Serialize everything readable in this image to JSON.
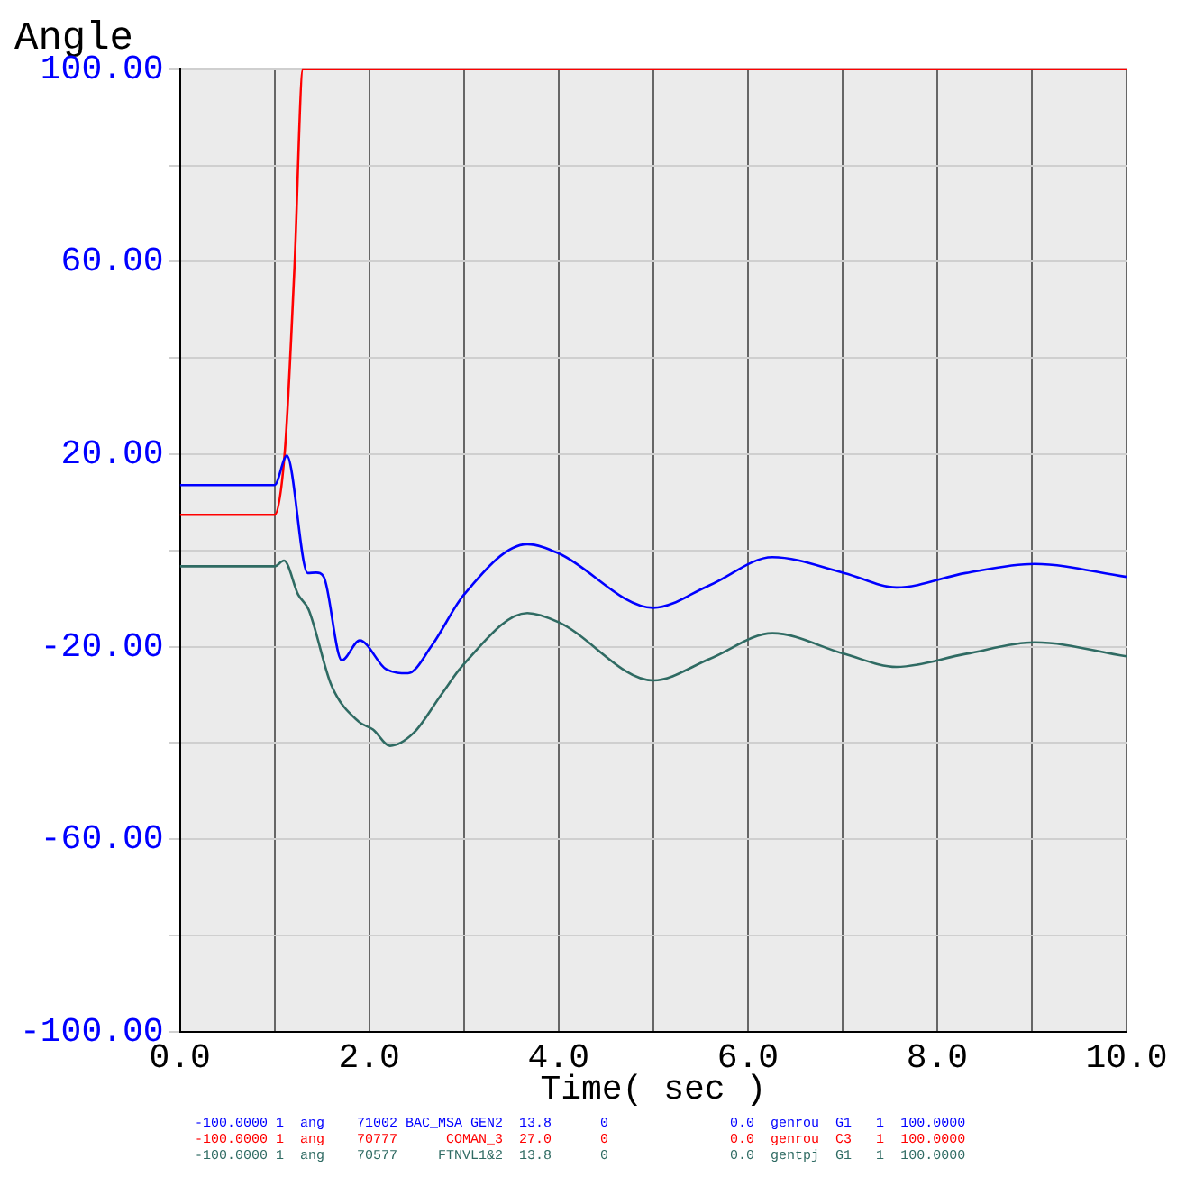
{
  "chart_data": {
    "type": "line",
    "title": "Angle",
    "xlabel": "Time( sec )",
    "xlim": [
      0,
      10
    ],
    "xticks": [
      {
        "value": 0,
        "label": "0.0"
      },
      {
        "value": 1,
        "label": null
      },
      {
        "value": 2,
        "label": "2.0"
      },
      {
        "value": 3,
        "label": null
      },
      {
        "value": 4,
        "label": "4.0"
      },
      {
        "value": 5,
        "label": null
      },
      {
        "value": 6,
        "label": "6.0"
      },
      {
        "value": 7,
        "label": null
      },
      {
        "value": 8,
        "label": "8.0"
      },
      {
        "value": 9,
        "label": null
      },
      {
        "value": 10,
        "label": "10.0"
      }
    ],
    "ylim": [
      -100,
      100
    ],
    "yticks": [
      {
        "value": -100,
        "label": "-100.00"
      },
      {
        "value": -80,
        "label": null
      },
      {
        "value": -60,
        "label": "-60.00"
      },
      {
        "value": -40,
        "label": null
      },
      {
        "value": -20,
        "label": "-20.00"
      },
      {
        "value": 0,
        "label": null
      },
      {
        "value": 20,
        "label": "20.00"
      },
      {
        "value": 40,
        "label": null
      },
      {
        "value": 60,
        "label": "60.00"
      },
      {
        "value": 80,
        "label": null
      },
      {
        "value": 100,
        "label": "100.00"
      }
    ],
    "grid": true,
    "legend": "bottom",
    "marker": "none",
    "line_style": "solid",
    "series": [
      {
        "name": "-100.0000 1  ang    71002 BAC_MSA GEN2  13.8      0               0.0  genrou  G1   1  100.0000",
        "color": "#0000ff",
        "x": [
          0,
          1.0,
          1.13,
          1.35,
          1.44,
          1.52,
          1.71,
          1.9,
          2.18,
          2.41,
          2.66,
          3.0,
          3.67,
          4.0,
          5.0,
          5.6,
          6.26,
          7.02,
          7.57,
          8.3,
          9.03,
          10
        ],
        "values": [
          13.6,
          13.6,
          19.7,
          -4.7,
          -4.6,
          -5.5,
          -22.8,
          -18.7,
          -24.7,
          -25.5,
          -19.8,
          -9.2,
          1.3,
          -0.6,
          -11.9,
          -7.2,
          -1.4,
          -4.7,
          -7.7,
          -4.7,
          -2.8,
          -5.5
        ]
      },
      {
        "name": "-100.0000 1  ang    70777      COMAN_3  27.0      0               0.0  genrou  C3   1  100.0000",
        "color": "#ff0000",
        "x": [
          0,
          1.0,
          1.11,
          1.21,
          1.3,
          10
        ],
        "values": [
          7.4,
          7.4,
          21,
          58.7,
          100,
          100
        ]
      },
      {
        "name": "-100.0000 1  ang    70577     FTNVL1&2  13.8      0               0.0  gentpj  G1   1  100.0000",
        "color": "#2f6b63",
        "x": [
          0,
          1.0,
          1.1,
          1.25,
          1.36,
          1.6,
          1.89,
          2.04,
          2.22,
          2.47,
          2.76,
          3.0,
          3.67,
          4.0,
          5.0,
          5.6,
          6.26,
          7.02,
          7.57,
          8.3,
          9.03,
          10
        ],
        "values": [
          -3.3,
          -3.3,
          -2.1,
          -9.2,
          -12.3,
          -28,
          -35.6,
          -37.2,
          -40.6,
          -37.9,
          -30,
          -23.6,
          -13,
          -14.9,
          -27,
          -22.5,
          -17.2,
          -21.5,
          -24.2,
          -21.5,
          -19.1,
          -22
        ]
      }
    ]
  }
}
